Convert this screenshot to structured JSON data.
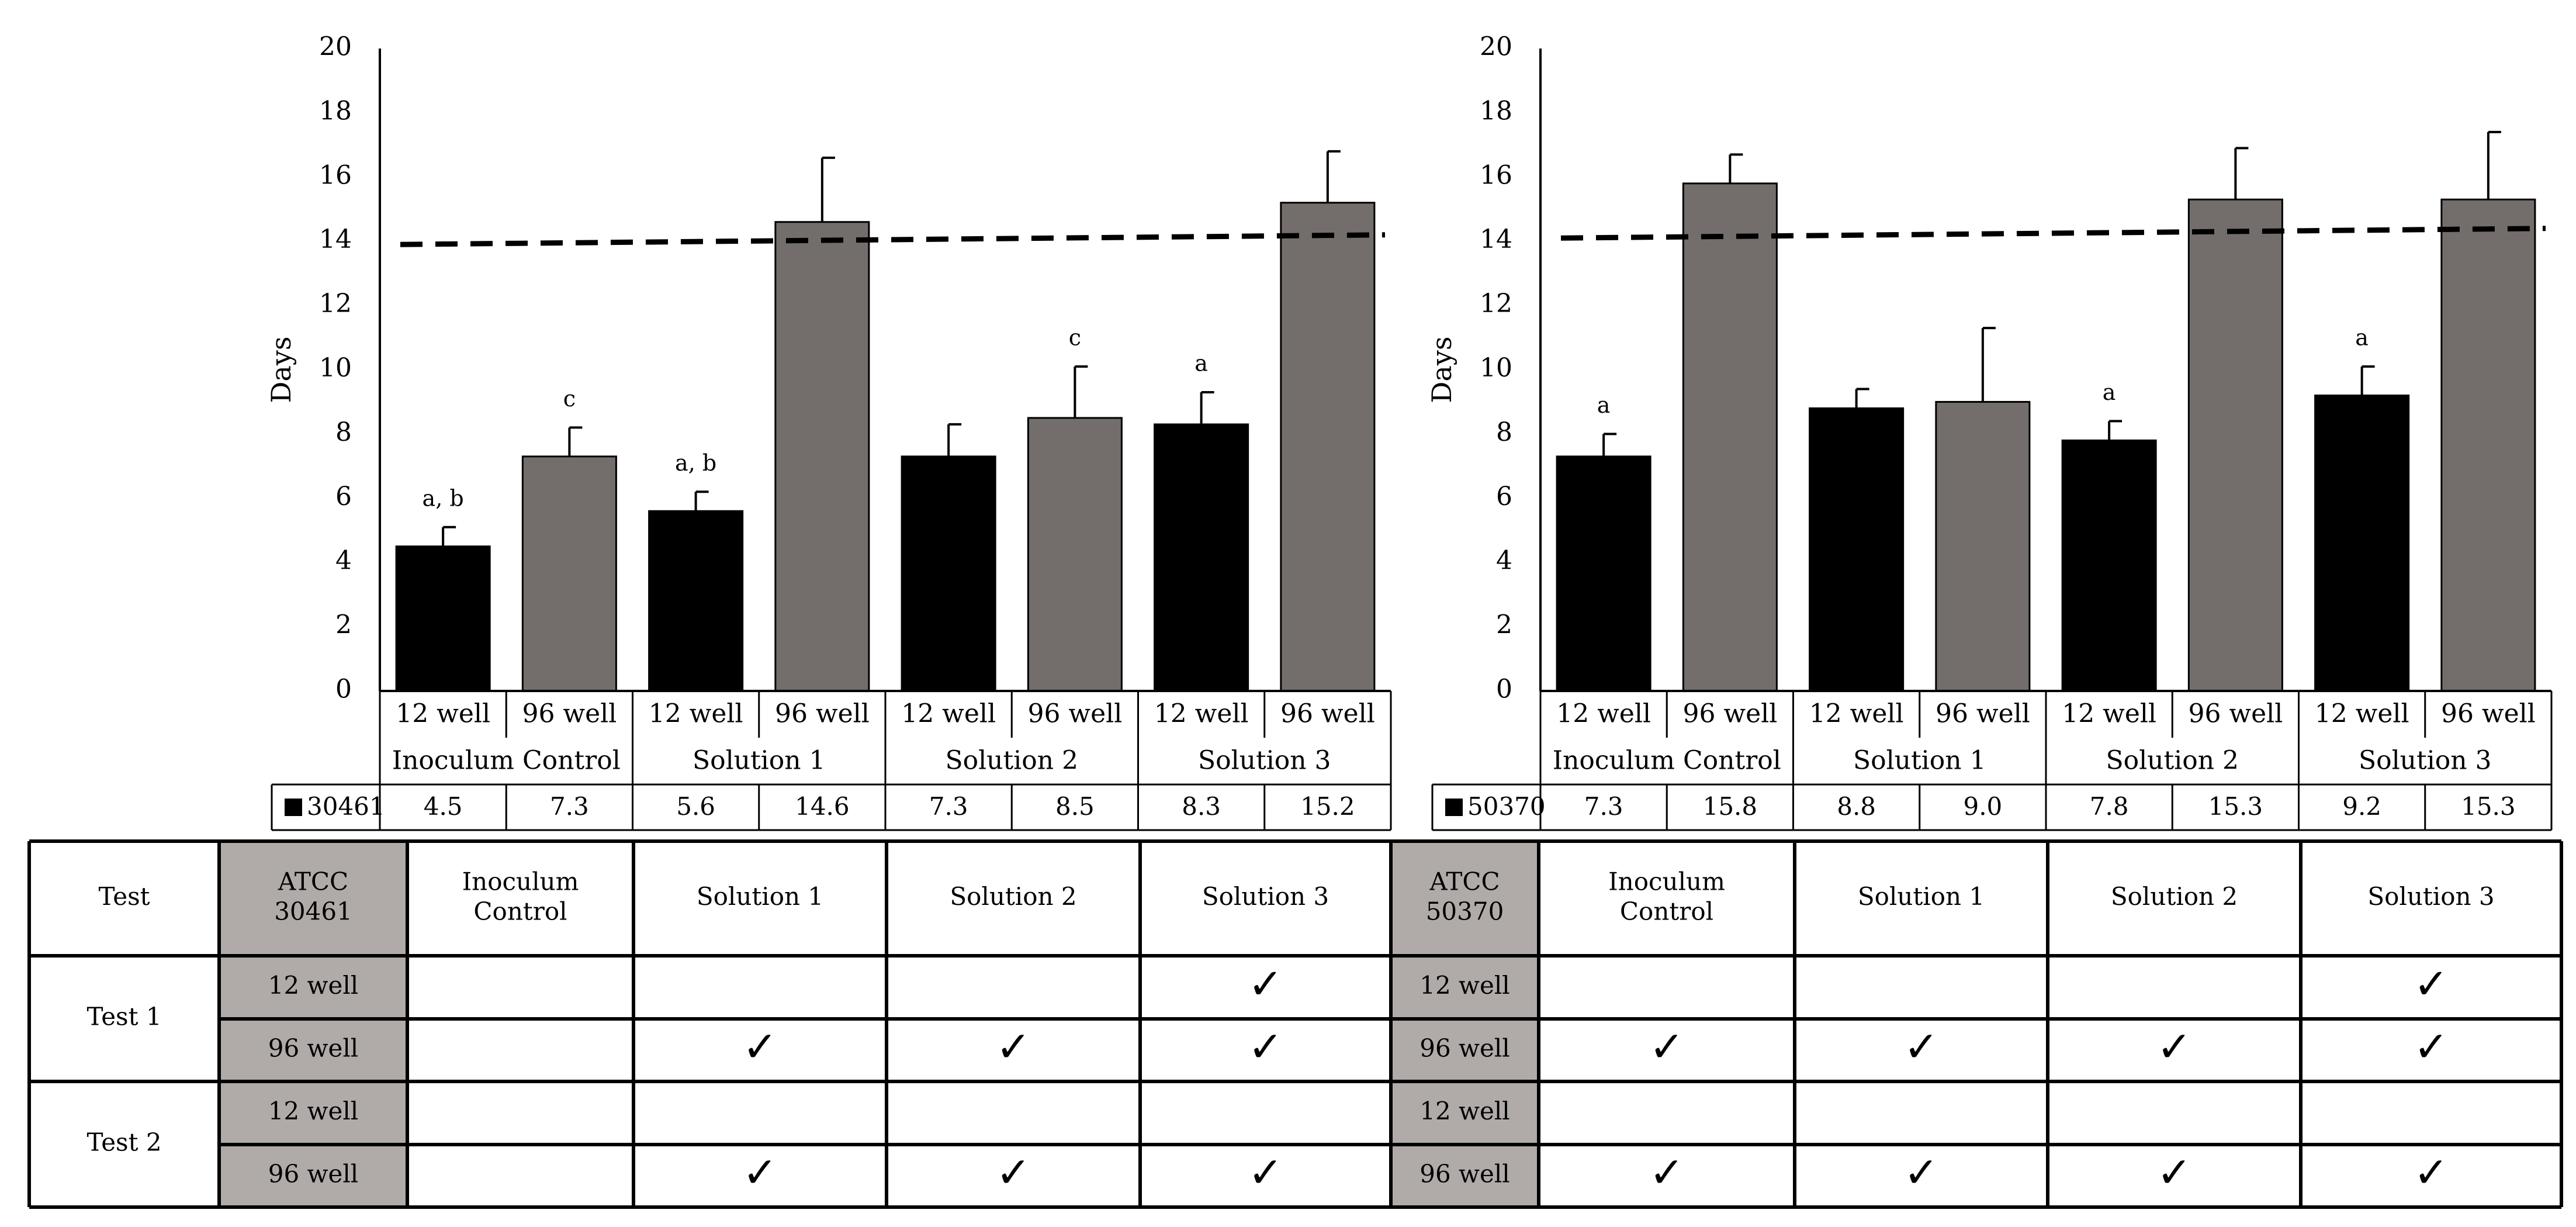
{
  "chart_data": [
    {
      "type": "bar",
      "title": "",
      "xlabel": "",
      "ylabel": "Days",
      "ylim": [
        0,
        20
      ],
      "yticks": [
        0,
        2,
        4,
        6,
        8,
        10,
        12,
        14,
        16,
        18,
        20
      ],
      "grid": false,
      "threshold_line": {
        "style": "dashed",
        "start_value": 13.9,
        "end_value": 14.2
      },
      "categories": [
        "12 well",
        "96 well",
        "12 well",
        "96 well",
        "12 well",
        "96 well",
        "12 well",
        "96 well"
      ],
      "groups": [
        "Inoculum Control",
        "Solution 1",
        "Solution 2",
        "Solution 3"
      ],
      "series": [
        {
          "name": "30461",
          "values": [
            4.5,
            7.3,
            5.6,
            14.6,
            7.3,
            8.5,
            8.3,
            15.2
          ],
          "value_labels": [
            "4.5",
            "7.3",
            "5.6",
            "14.6",
            "7.3",
            "8.5",
            "8.3",
            "15.2"
          ],
          "error_upper": [
            5.1,
            8.2,
            6.2,
            16.6,
            8.3,
            10.1,
            9.3,
            16.8
          ],
          "annotations": [
            "a, b",
            "c",
            "a, b",
            "",
            "",
            "c",
            "a",
            ""
          ]
        }
      ],
      "bar_colors": [
        "#000000",
        "#736e6b",
        "#000000",
        "#736e6b",
        "#000000",
        "#736e6b",
        "#000000",
        "#736e6b"
      ]
    },
    {
      "type": "bar",
      "title": "",
      "xlabel": "",
      "ylabel": "Days",
      "ylim": [
        0,
        20
      ],
      "yticks": [
        0,
        2,
        4,
        6,
        8,
        10,
        12,
        14,
        16,
        18,
        20
      ],
      "grid": false,
      "threshold_line": {
        "style": "dashed",
        "start_value": 14.1,
        "end_value": 14.4
      },
      "categories": [
        "12 well",
        "96 well",
        "12 well",
        "96 well",
        "12 well",
        "96 well",
        "12 well",
        "96 well"
      ],
      "groups": [
        "Inoculum Control",
        "Solution 1",
        "Solution 2",
        "Solution 3"
      ],
      "series": [
        {
          "name": "50370",
          "values": [
            7.3,
            15.8,
            8.8,
            9.0,
            7.8,
            15.3,
            9.2,
            15.3
          ],
          "value_labels": [
            "7.3",
            "15.8",
            "8.8",
            "9.0",
            "7.8",
            "15.3",
            "9.2",
            "15.3"
          ],
          "error_upper": [
            8.0,
            16.7,
            9.4,
            11.3,
            8.4,
            16.9,
            10.1,
            17.4
          ],
          "annotations": [
            "a",
            "",
            "",
            "",
            "a",
            "",
            "a",
            ""
          ]
        }
      ],
      "bar_colors": [
        "#000000",
        "#736e6b",
        "#000000",
        "#736e6b",
        "#000000",
        "#736e6b",
        "#000000",
        "#736e6b"
      ]
    }
  ],
  "test_table": {
    "test_label": "Test",
    "fill_color": "#b0aba8",
    "sections": [
      {
        "strain_label": "ATCC\n30461",
        "columns": [
          "Inoculum\nControl",
          "Solution 1",
          "Solution 2",
          "Solution 3"
        ]
      },
      {
        "strain_label": "ATCC\n50370",
        "columns": [
          "Inoculum\nControl",
          "Solution 1",
          "Solution 2",
          "Solution 3"
        ]
      }
    ],
    "rows": [
      {
        "test": "Test 1",
        "well": "12 well",
        "checks": [
          [
            false,
            false,
            false,
            true
          ],
          [
            false,
            false,
            false,
            true
          ]
        ]
      },
      {
        "test": "Test 1",
        "well": "96 well",
        "checks": [
          [
            false,
            true,
            true,
            true
          ],
          [
            true,
            true,
            true,
            true
          ]
        ]
      },
      {
        "test": "Test 2",
        "well": "12 well",
        "checks": [
          [
            false,
            false,
            false,
            false
          ],
          [
            false,
            false,
            false,
            false
          ]
        ]
      },
      {
        "test": "Test 2",
        "well": "96 well",
        "checks": [
          [
            false,
            true,
            true,
            true
          ],
          [
            true,
            true,
            true,
            true
          ]
        ]
      }
    ],
    "check_symbol": "✓"
  }
}
